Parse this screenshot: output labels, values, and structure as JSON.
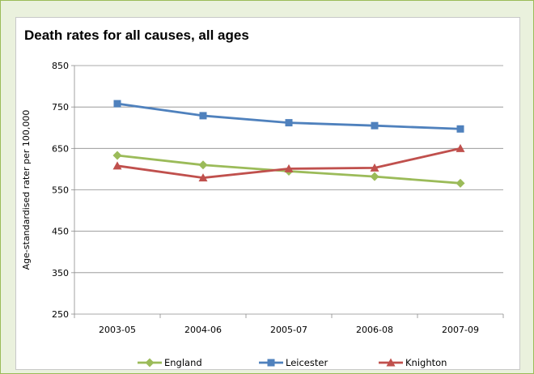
{
  "chart_data": {
    "type": "line",
    "title": "Death rates for all causes, all ages",
    "xlabel": "",
    "ylabel": "Age-standardised rater per 100,000",
    "categories": [
      "2003-05",
      "2004-06",
      "2005-07",
      "2006-08",
      "2007-09"
    ],
    "ylim": [
      250,
      850
    ],
    "yticks": [
      "850",
      "750",
      "650",
      "550",
      "450",
      "350",
      "250"
    ],
    "grid": true,
    "legend_position": "bottom",
    "series": [
      {
        "name": "England",
        "color": "#9bbb59",
        "marker": "diamond",
        "values": [
          633,
          610,
          595,
          582,
          566
        ]
      },
      {
        "name": "Leicester",
        "color": "#4f81bd",
        "marker": "square",
        "values": [
          758,
          729,
          712,
          705,
          697
        ]
      },
      {
        "name": "Knighton",
        "color": "#c0504d",
        "marker": "triangle",
        "values": [
          608,
          579,
          601,
          603,
          650
        ]
      }
    ]
  }
}
